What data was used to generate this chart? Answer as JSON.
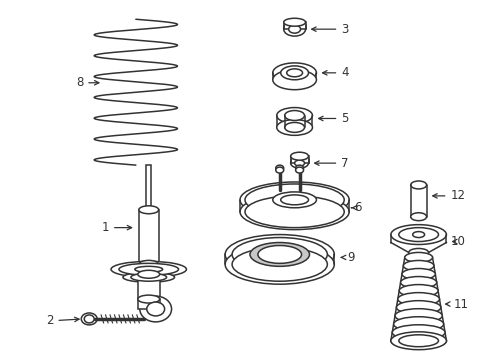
{
  "background_color": "#ffffff",
  "line_color": "#333333",
  "line_width": 1.1,
  "label_fontsize": 8.5,
  "figsize": [
    4.89,
    3.6
  ],
  "dpi": 100
}
